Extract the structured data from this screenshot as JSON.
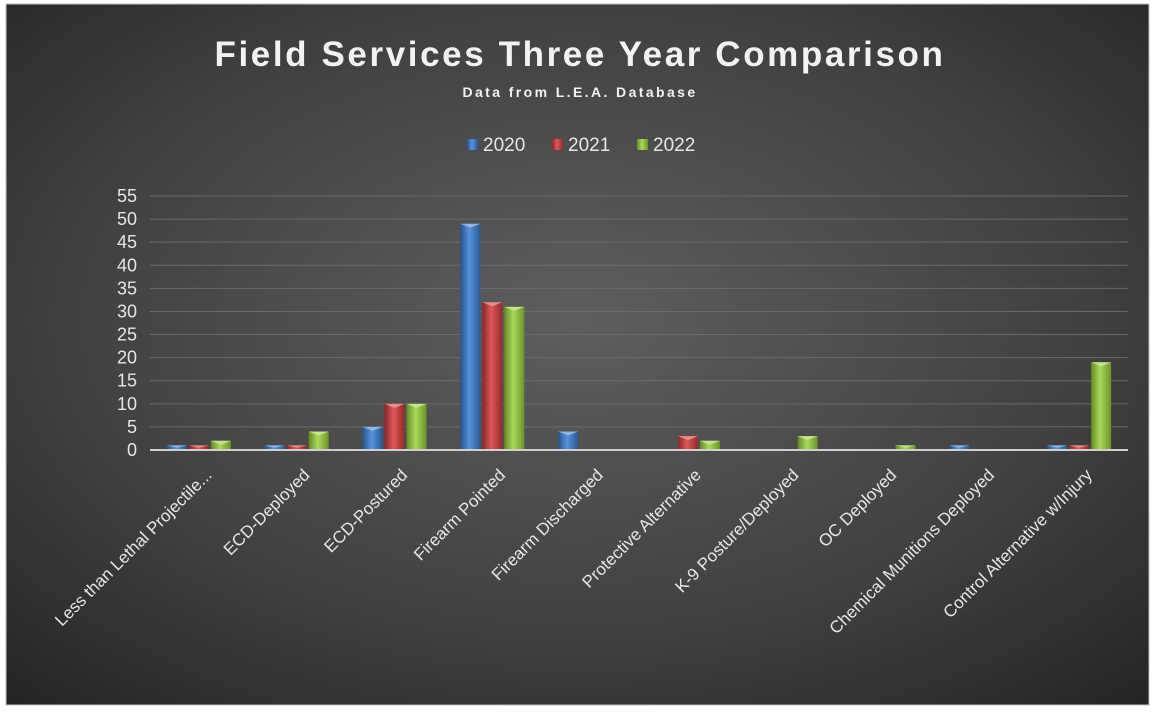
{
  "chart_data": {
    "type": "bar",
    "title": "Field Services Three Year Comparison",
    "subtitle": "Data from L.E.A. Database",
    "xlabel": "",
    "ylabel": "",
    "ylim": [
      0,
      55
    ],
    "yticks": [
      0,
      5,
      10,
      15,
      20,
      25,
      30,
      35,
      40,
      45,
      50,
      55
    ],
    "grid": true,
    "legend_position": "top",
    "categories": [
      "Less than Lethal Projectile...",
      "ECD-Deployed",
      "ECD-Postured",
      "Firearm Pointed",
      "Firearm Discharged",
      "Protective Alternative",
      "K-9 Posture/Deployed",
      "OC Deployed",
      "Chemical Munitions Deployed",
      "Control Alternative w/Injury"
    ],
    "series": [
      {
        "name": "2020",
        "color": "#3a7fd5",
        "values": [
          1,
          1,
          5,
          49,
          4,
          0,
          0,
          0,
          1,
          1
        ]
      },
      {
        "name": "2021",
        "color": "#d63b3b",
        "values": [
          1,
          1,
          10,
          32,
          0,
          3,
          0,
          0,
          0,
          1
        ]
      },
      {
        "name": "2022",
        "color": "#9bd23a",
        "values": [
          2,
          4,
          10,
          31,
          0,
          2,
          3,
          1,
          0,
          19
        ]
      }
    ]
  }
}
